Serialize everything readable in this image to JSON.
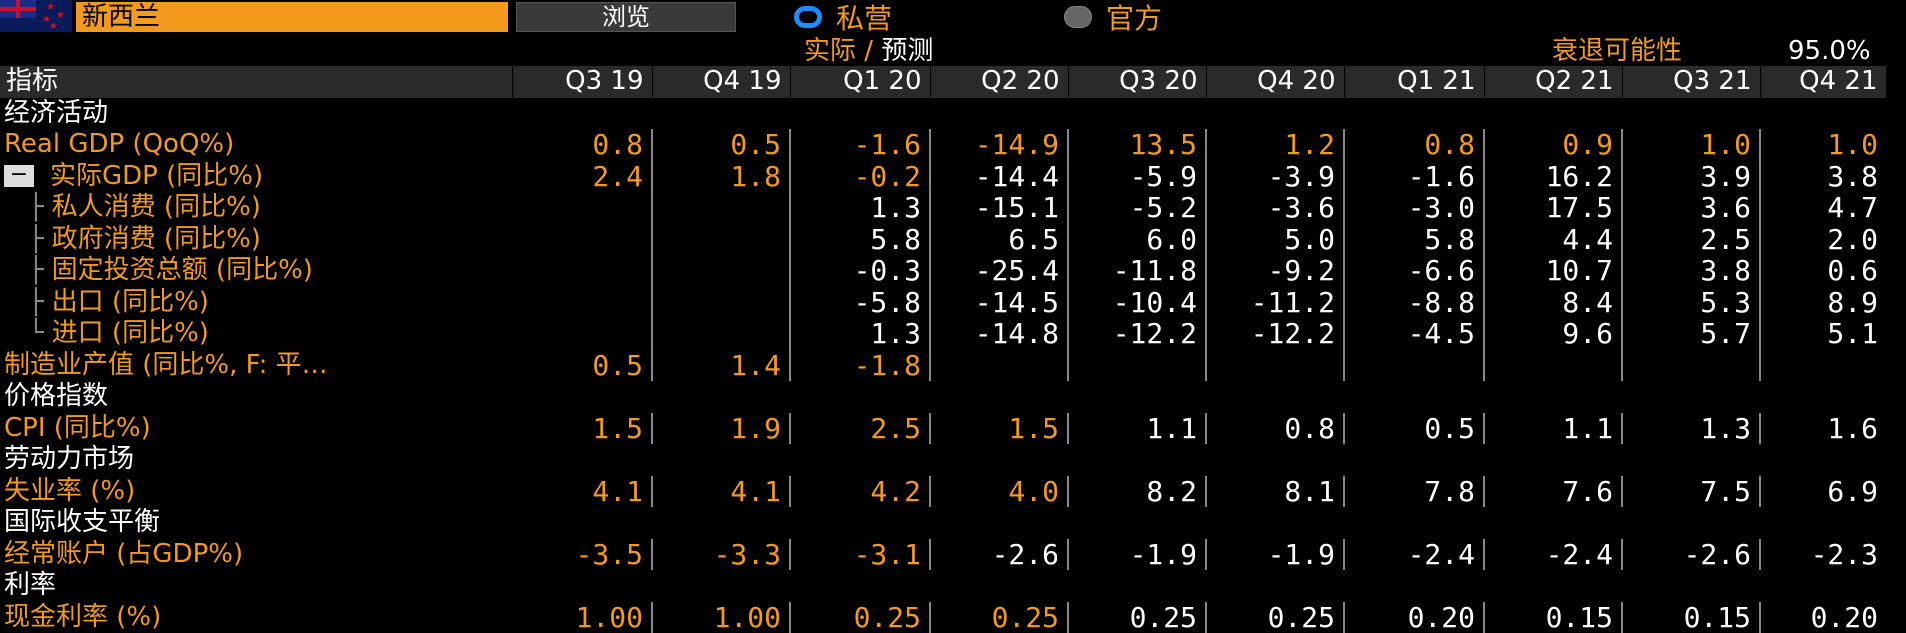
{
  "header": {
    "country": "新西兰",
    "browse_label": "浏览",
    "radio_private": "私营",
    "radio_official": "官方",
    "actual_label": "实际",
    "slash": "/",
    "forecast_label": "预测",
    "recession_label": "衰退可能性",
    "recession_value": "95.0%"
  },
  "table": {
    "label_header": "指标",
    "columns": [
      "Q3 19",
      "Q4 19",
      "Q1 20",
      "Q2 20",
      "Q3 20",
      "Q4 20",
      "Q1 21",
      "Q2 21",
      "Q3 21",
      "Q4 21"
    ],
    "sections": [
      {
        "title": "经济活动",
        "rows": [
          {
            "label": "Real GDP (QoQ%)",
            "values": [
              "0.8",
              "0.5",
              "-1.6",
              "-14.9",
              "13.5",
              "1.2",
              "0.8",
              "0.9",
              "1.0",
              "1.0"
            ]
          },
          {
            "label": "实际GDP (同比%)",
            "values": [
              "2.4",
              "1.8",
              "-0.2",
              "-14.4",
              "-5.9",
              "-3.9",
              "-1.6",
              "16.2",
              "3.9",
              "3.8"
            ]
          },
          {
            "label": "私人消费 (同比%)",
            "values": [
              "",
              "",
              "1.3",
              "-15.1",
              "-5.2",
              "-3.6",
              "-3.0",
              "17.5",
              "3.6",
              "4.7"
            ]
          },
          {
            "label": "政府消费 (同比%)",
            "values": [
              "",
              "",
              "5.8",
              "6.5",
              "6.0",
              "5.0",
              "5.8",
              "4.4",
              "2.5",
              "2.0"
            ]
          },
          {
            "label": "固定投资总额 (同比%)",
            "values": [
              "",
              "",
              "-0.3",
              "-25.4",
              "-11.8",
              "-9.2",
              "-6.6",
              "10.7",
              "3.8",
              "0.6"
            ]
          },
          {
            "label": "出口 (同比%)",
            "values": [
              "",
              "",
              "-5.8",
              "-14.5",
              "-10.4",
              "-11.2",
              "-8.8",
              "8.4",
              "5.3",
              "8.9"
            ]
          },
          {
            "label": "进口 (同比%)",
            "values": [
              "",
              "",
              "1.3",
              "-14.8",
              "-12.2",
              "-12.2",
              "-4.5",
              "9.6",
              "5.7",
              "5.1"
            ]
          },
          {
            "label": "制造业产值 (同比%, F: 平…",
            "values": [
              "0.5",
              "1.4",
              "-1.8",
              "",
              "",
              "",
              "",
              "",
              "",
              ""
            ]
          }
        ]
      },
      {
        "title": "价格指数",
        "rows": [
          {
            "label": "CPI (同比%)",
            "values": [
              "1.5",
              "1.9",
              "2.5",
              "1.5",
              "1.1",
              "0.8",
              "0.5",
              "1.1",
              "1.3",
              "1.6"
            ]
          }
        ]
      },
      {
        "title": "劳动力市场",
        "rows": [
          {
            "label": "失业率 (%)",
            "values": [
              "4.1",
              "4.1",
              "4.2",
              "4.0",
              "8.2",
              "8.1",
              "7.8",
              "7.6",
              "7.5",
              "6.9"
            ]
          }
        ]
      },
      {
        "title": "国际收支平衡",
        "rows": [
          {
            "label": "经常账户 (占GDP%)",
            "values": [
              "-3.5",
              "-3.3",
              "-3.1",
              "-2.6",
              "-1.9",
              "-1.9",
              "-2.4",
              "-2.4",
              "-2.6",
              "-2.3"
            ]
          }
        ]
      },
      {
        "title": "利率",
        "rows": [
          {
            "label": "现金利率 (%)",
            "values": [
              "1.00",
              "1.00",
              "0.25",
              "0.25",
              "0.25",
              "0.25",
              "0.20",
              "0.15",
              "0.15",
              "0.20"
            ]
          }
        ]
      }
    ]
  }
}
